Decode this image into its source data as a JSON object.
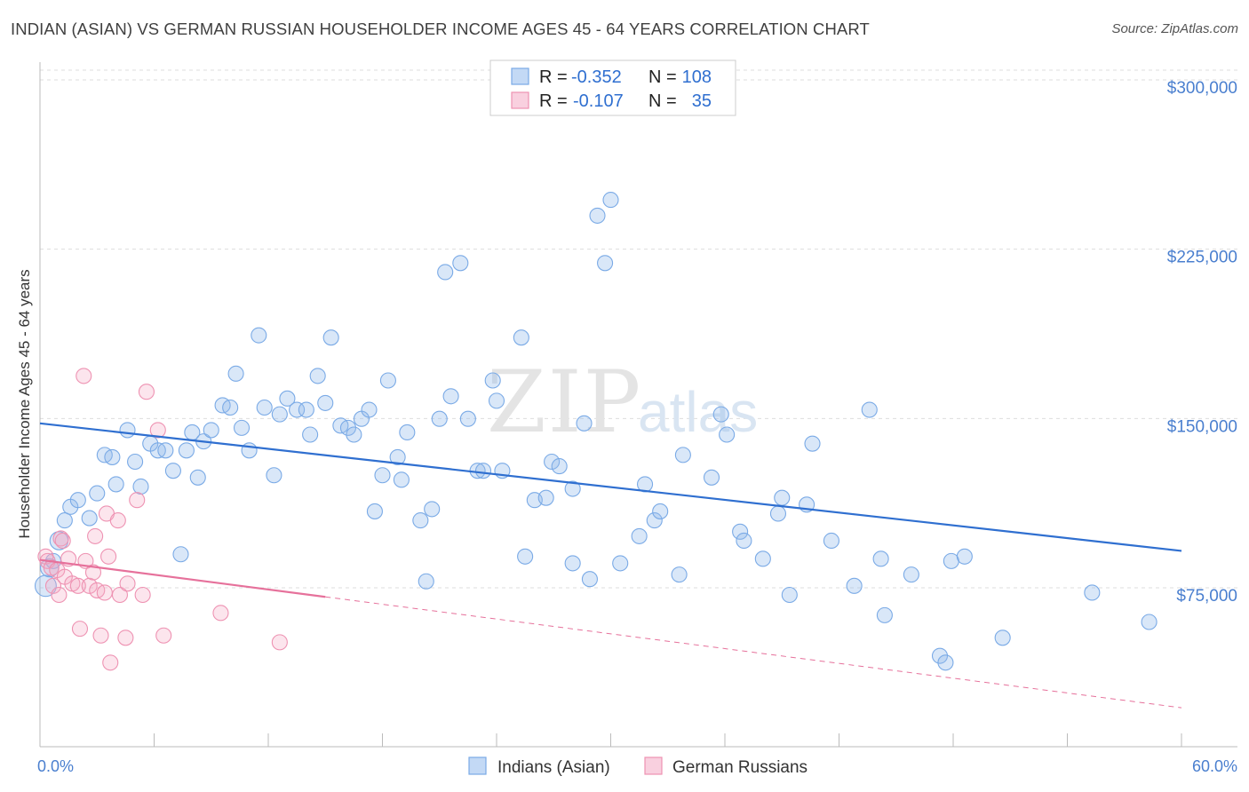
{
  "title": "INDIAN (ASIAN) VS GERMAN RUSSIAN HOUSEHOLDER INCOME AGES 45 - 64 YEARS CORRELATION CHART",
  "source": "Source: ZipAtlas.com",
  "watermark": {
    "zip": "ZIP",
    "atlas": "atlas"
  },
  "colors": {
    "blue": "#7aaae6",
    "blue_fill": "rgba(146,186,236,0.35)",
    "blue_line": "#2f6fd0",
    "pink": "#ee92b2",
    "pink_fill": "rgba(244,170,196,0.30)",
    "pink_line": "#e6719b",
    "grid": "#dddddd",
    "axis_label": "#4a7fcf"
  },
  "legend": {
    "rows": [
      {
        "r_label": "R = ",
        "r_value": "-0.352",
        "n_label": "N = ",
        "n_value": "108",
        "series": "blue"
      },
      {
        "r_label": "R = ",
        "r_value": "-0.107",
        "n_label": "N = ",
        "n_value": "35",
        "series": "pink"
      }
    ]
  },
  "bottom_legend": [
    "Indians (Asian)",
    "German Russians"
  ],
  "chart_data": {
    "type": "scatter",
    "title": "INDIAN (ASIAN) VS GERMAN RUSSIAN HOUSEHOLDER INCOME AGES 45 - 64 YEARS CORRELATION CHART",
    "xlabel": "",
    "ylabel": "Householder Income Ages 45 - 64 years",
    "xlim": [
      0,
      60
    ],
    "ylim": [
      10000,
      310000
    ],
    "x_tick_labels": [
      "0.0%",
      "60.0%"
    ],
    "y_ticks": [
      75000,
      150000,
      225000,
      300000
    ],
    "y_tick_labels": [
      "$75,000",
      "$150,000",
      "$225,000",
      "$300,000"
    ],
    "grid": true,
    "legend_placement": "top-center",
    "series": [
      {
        "name": "Indians (Asian)",
        "color": "blue",
        "trend": {
          "x": [
            0,
            60
          ],
          "y": [
            151000,
            94500
          ],
          "dashed_from": null
        },
        "points": [
          [
            0.3,
            79000,
            14
          ],
          [
            0.5,
            87000,
            12
          ],
          [
            0.7,
            90000,
            10
          ],
          [
            1.0,
            99000,
            12
          ],
          [
            1.3,
            108000,
            10
          ],
          [
            1.6,
            114000,
            10
          ],
          [
            2.0,
            117000,
            10
          ],
          [
            2.6,
            109000,
            10
          ],
          [
            3.0,
            120000,
            10
          ],
          [
            3.4,
            137000,
            10
          ],
          [
            3.8,
            136000,
            10
          ],
          [
            4.0,
            124000,
            10
          ],
          [
            4.6,
            148000,
            10
          ],
          [
            5.0,
            134000,
            10
          ],
          [
            5.3,
            123000,
            10
          ],
          [
            5.8,
            142000,
            10
          ],
          [
            6.2,
            139000,
            10
          ],
          [
            6.6,
            139000,
            10
          ],
          [
            7.0,
            130000,
            10
          ],
          [
            7.4,
            93000,
            10
          ],
          [
            7.7,
            139000,
            10
          ],
          [
            8.0,
            147000,
            10
          ],
          [
            8.3,
            127000,
            10
          ],
          [
            8.6,
            143000,
            10
          ],
          [
            9.0,
            148000,
            10
          ],
          [
            9.6,
            159000,
            10
          ],
          [
            10.0,
            158000,
            10
          ],
          [
            10.3,
            173000,
            10
          ],
          [
            10.6,
            149000,
            10
          ],
          [
            11.0,
            139000,
            10
          ],
          [
            11.5,
            190000,
            10
          ],
          [
            11.8,
            158000,
            10
          ],
          [
            12.3,
            128000,
            10
          ],
          [
            12.6,
            155000,
            10
          ],
          [
            13.0,
            162000,
            10
          ],
          [
            13.5,
            157000,
            10
          ],
          [
            14.0,
            157000,
            10
          ],
          [
            14.2,
            146000,
            10
          ],
          [
            14.6,
            172000,
            10
          ],
          [
            15.0,
            160000,
            10
          ],
          [
            15.3,
            189000,
            10
          ],
          [
            15.8,
            150000,
            10
          ],
          [
            16.2,
            149000,
            10
          ],
          [
            16.5,
            146000,
            10
          ],
          [
            16.9,
            153000,
            10
          ],
          [
            17.3,
            157000,
            10
          ],
          [
            17.6,
            112000,
            10
          ],
          [
            18.0,
            128000,
            10
          ],
          [
            18.3,
            170000,
            10
          ],
          [
            18.8,
            136000,
            10
          ],
          [
            19.0,
            126000,
            10
          ],
          [
            19.3,
            147000,
            10
          ],
          [
            20.0,
            108000,
            10
          ],
          [
            20.3,
            81000,
            10
          ],
          [
            20.6,
            113000,
            10
          ],
          [
            21.0,
            153000,
            10
          ],
          [
            21.3,
            218000,
            10
          ],
          [
            21.6,
            163000,
            10
          ],
          [
            22.1,
            222000,
            10
          ],
          [
            22.5,
            153000,
            10
          ],
          [
            23.0,
            130000,
            10
          ],
          [
            23.3,
            130000,
            10
          ],
          [
            23.8,
            170000,
            10
          ],
          [
            24.0,
            161000,
            10
          ],
          [
            24.3,
            130000,
            10
          ],
          [
            25.3,
            189000,
            10
          ],
          [
            25.5,
            92000,
            10
          ],
          [
            26.0,
            117000,
            10
          ],
          [
            26.6,
            118000,
            10
          ],
          [
            26.9,
            134000,
            10
          ],
          [
            27.3,
            132000,
            10
          ],
          [
            28.0,
            89000,
            10
          ],
          [
            28.0,
            122000,
            10
          ],
          [
            28.6,
            151000,
            10
          ],
          [
            28.9,
            82000,
            10
          ],
          [
            29.3,
            243000,
            10
          ],
          [
            29.7,
            222000,
            10
          ],
          [
            30.0,
            250000,
            10
          ],
          [
            30.5,
            89000,
            10
          ],
          [
            31.5,
            101000,
            10
          ],
          [
            31.8,
            124000,
            10
          ],
          [
            32.3,
            108000,
            10
          ],
          [
            32.6,
            112000,
            10
          ],
          [
            33.6,
            84000,
            10
          ],
          [
            33.8,
            137000,
            10
          ],
          [
            35.3,
            127000,
            10
          ],
          [
            35.8,
            155000,
            10
          ],
          [
            36.1,
            146000,
            10
          ],
          [
            36.8,
            103000,
            10
          ],
          [
            37.0,
            99000,
            10
          ],
          [
            38.0,
            91000,
            10
          ],
          [
            38.8,
            111000,
            10
          ],
          [
            39.0,
            118000,
            10
          ],
          [
            39.4,
            75000,
            10
          ],
          [
            40.3,
            115000,
            10
          ],
          [
            40.6,
            142000,
            10
          ],
          [
            41.6,
            99000,
            10
          ],
          [
            42.8,
            79000,
            10
          ],
          [
            43.6,
            157000,
            10
          ],
          [
            44.2,
            91000,
            10
          ],
          [
            44.4,
            66000,
            10
          ],
          [
            45.8,
            84000,
            10
          ],
          [
            47.3,
            48000,
            10
          ],
          [
            47.6,
            45000,
            10
          ],
          [
            47.9,
            90000,
            10
          ],
          [
            48.6,
            92000,
            10
          ],
          [
            50.6,
            56000,
            10
          ],
          [
            55.3,
            76000,
            10
          ],
          [
            58.3,
            63000,
            10
          ]
        ]
      },
      {
        "name": "German Russians",
        "color": "pink",
        "trend": {
          "x": [
            0,
            60
          ],
          "y": [
            90500,
            25000
          ],
          "solid_until_x": 15
        },
        "points": [
          [
            0.3,
            92000,
            10
          ],
          [
            0.4,
            90000,
            10
          ],
          [
            0.6,
            87000,
            10
          ],
          [
            0.7,
            79000,
            10
          ],
          [
            0.9,
            86000,
            10
          ],
          [
            1.0,
            75000,
            10
          ],
          [
            1.1,
            100000,
            10
          ],
          [
            1.3,
            83000,
            10
          ],
          [
            1.5,
            91000,
            10
          ],
          [
            1.7,
            80000,
            10
          ],
          [
            2.0,
            79000,
            10
          ],
          [
            2.1,
            60000,
            10
          ],
          [
            2.3,
            172000,
            10
          ],
          [
            2.4,
            90000,
            10
          ],
          [
            2.6,
            79000,
            10
          ],
          [
            2.9,
            101000,
            10
          ],
          [
            3.0,
            77000,
            10
          ],
          [
            3.2,
            57000,
            10
          ],
          [
            3.4,
            76000,
            10
          ],
          [
            3.5,
            111000,
            10
          ],
          [
            3.6,
            92000,
            10
          ],
          [
            3.7,
            45000,
            10
          ],
          [
            4.2,
            75000,
            10
          ],
          [
            4.5,
            56000,
            10
          ],
          [
            4.6,
            80000,
            10
          ],
          [
            5.1,
            117000,
            10
          ],
          [
            5.4,
            75000,
            10
          ],
          [
            5.6,
            165000,
            10
          ],
          [
            6.2,
            148000,
            10
          ],
          [
            6.5,
            57000,
            10
          ],
          [
            9.5,
            67000,
            10
          ],
          [
            12.6,
            54000,
            10
          ],
          [
            4.1,
            108000,
            10
          ],
          [
            1.2,
            99000,
            10
          ],
          [
            2.8,
            85000,
            10
          ]
        ]
      }
    ]
  }
}
